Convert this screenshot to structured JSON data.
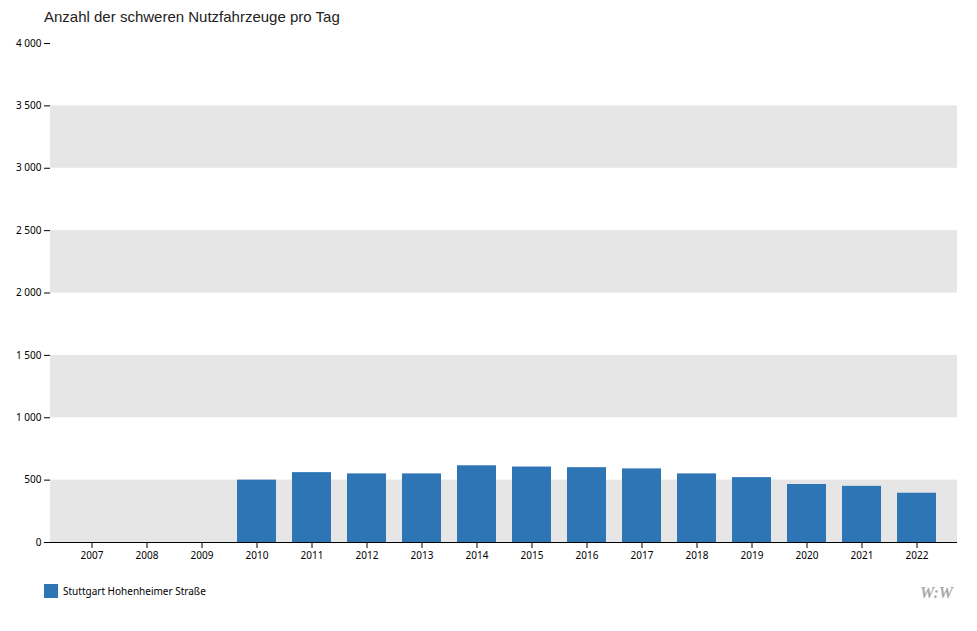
{
  "chart_data": {
    "type": "bar",
    "title": "Anzahl  der schweren Nutzfahrzeuge  pro Tag",
    "categories": [
      "2007",
      "2008",
      "2009",
      "2010",
      "2011",
      "2012",
      "2013",
      "2014",
      "2015",
      "2016",
      "2017",
      "2018",
      "2019",
      "2020",
      "2021",
      "2022"
    ],
    "series": [
      {
        "name": "Stuttgart Hohenheimer Straße",
        "color": "#2E75B6",
        "values": [
          null,
          null,
          null,
          500,
          560,
          550,
          550,
          615,
          605,
          600,
          590,
          550,
          520,
          465,
          450,
          395
        ]
      }
    ],
    "ylim": [
      0,
      4000
    ],
    "yticks": [
      0,
      500,
      {
        "value": 1000,
        "label": "1 000"
      },
      {
        "value": 1500,
        "label": "1 500"
      },
      {
        "value": 2000,
        "label": "2 000"
      },
      {
        "value": 2500,
        "label": "2 500"
      },
      {
        "value": 3000,
        "label": "3 000"
      },
      {
        "value": 3500,
        "label": "3 500"
      },
      {
        "value": 4000,
        "label": "4 000"
      }
    ],
    "grid": true,
    "legend": "bottom",
    "annotations": [
      "W:W"
    ]
  }
}
